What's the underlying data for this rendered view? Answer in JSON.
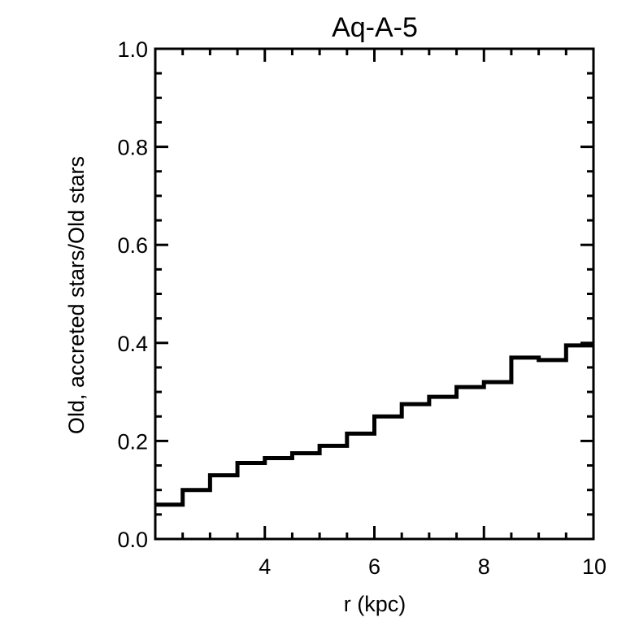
{
  "chart_data": {
    "type": "line",
    "title": "Aq-A-5",
    "xlabel": "r (kpc)",
    "ylabel": "Old, accreted stars/Old stars",
    "xlim": [
      2,
      10
    ],
    "ylim": [
      0,
      1
    ],
    "x_ticks": [
      4,
      6,
      8,
      10
    ],
    "x_tick_labels": [
      "4",
      "6",
      "8",
      "10"
    ],
    "y_ticks": [
      0,
      0.2,
      0.4,
      0.6,
      0.8,
      1.0
    ],
    "y_tick_labels": [
      "0.0",
      "0.2",
      "0.4",
      "0.6",
      "0.8",
      "1.0"
    ],
    "grid": false,
    "step_histogram": {
      "bin_edges": [
        2.0,
        2.5,
        3.0,
        3.5,
        4.0,
        4.5,
        5.0,
        5.5,
        6.0,
        6.5,
        7.0,
        7.5,
        8.0,
        8.5,
        9.0,
        9.5,
        10.0
      ],
      "values": [
        0.07,
        0.1,
        0.13,
        0.155,
        0.165,
        0.175,
        0.19,
        0.215,
        0.25,
        0.275,
        0.29,
        0.31,
        0.32,
        0.37,
        0.365,
        0.395
      ]
    },
    "line_color": "#000000"
  }
}
